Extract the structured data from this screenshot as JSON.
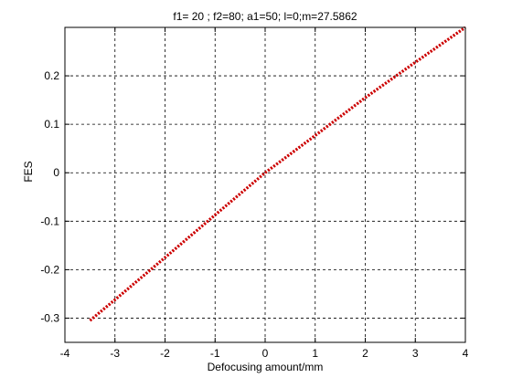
{
  "chart_data": {
    "type": "line",
    "title": "f1= 20 ; f2=80; a1=50; l=0;m=27.5862",
    "xlabel": "Defocusing amount/mm",
    "ylabel": "FES",
    "xlim": [
      -4,
      4
    ],
    "ylim": [
      -0.35,
      0.3
    ],
    "xticks": [
      -4,
      -3,
      -2,
      -1,
      0,
      1,
      2,
      3,
      4
    ],
    "xtick_labels": [
      "-4",
      "-3",
      "-2",
      "-1",
      "0",
      "1",
      "2",
      "3",
      "4"
    ],
    "yticks": [
      -0.3,
      -0.2,
      -0.1,
      0,
      0.1,
      0.2
    ],
    "ytick_labels": [
      "-0.3",
      "-0.2",
      "-0.1",
      "0",
      "0.1",
      "0.2"
    ],
    "grid": true,
    "series": [
      {
        "color": "#cc0000",
        "style": "dotted",
        "x": [
          -3.5,
          -3,
          -2,
          -1,
          0,
          1,
          2,
          3,
          4
        ],
        "y": [
          -0.305,
          -0.262,
          -0.175,
          -0.087,
          0,
          0.077,
          0.155,
          0.228,
          0.3
        ]
      }
    ]
  }
}
